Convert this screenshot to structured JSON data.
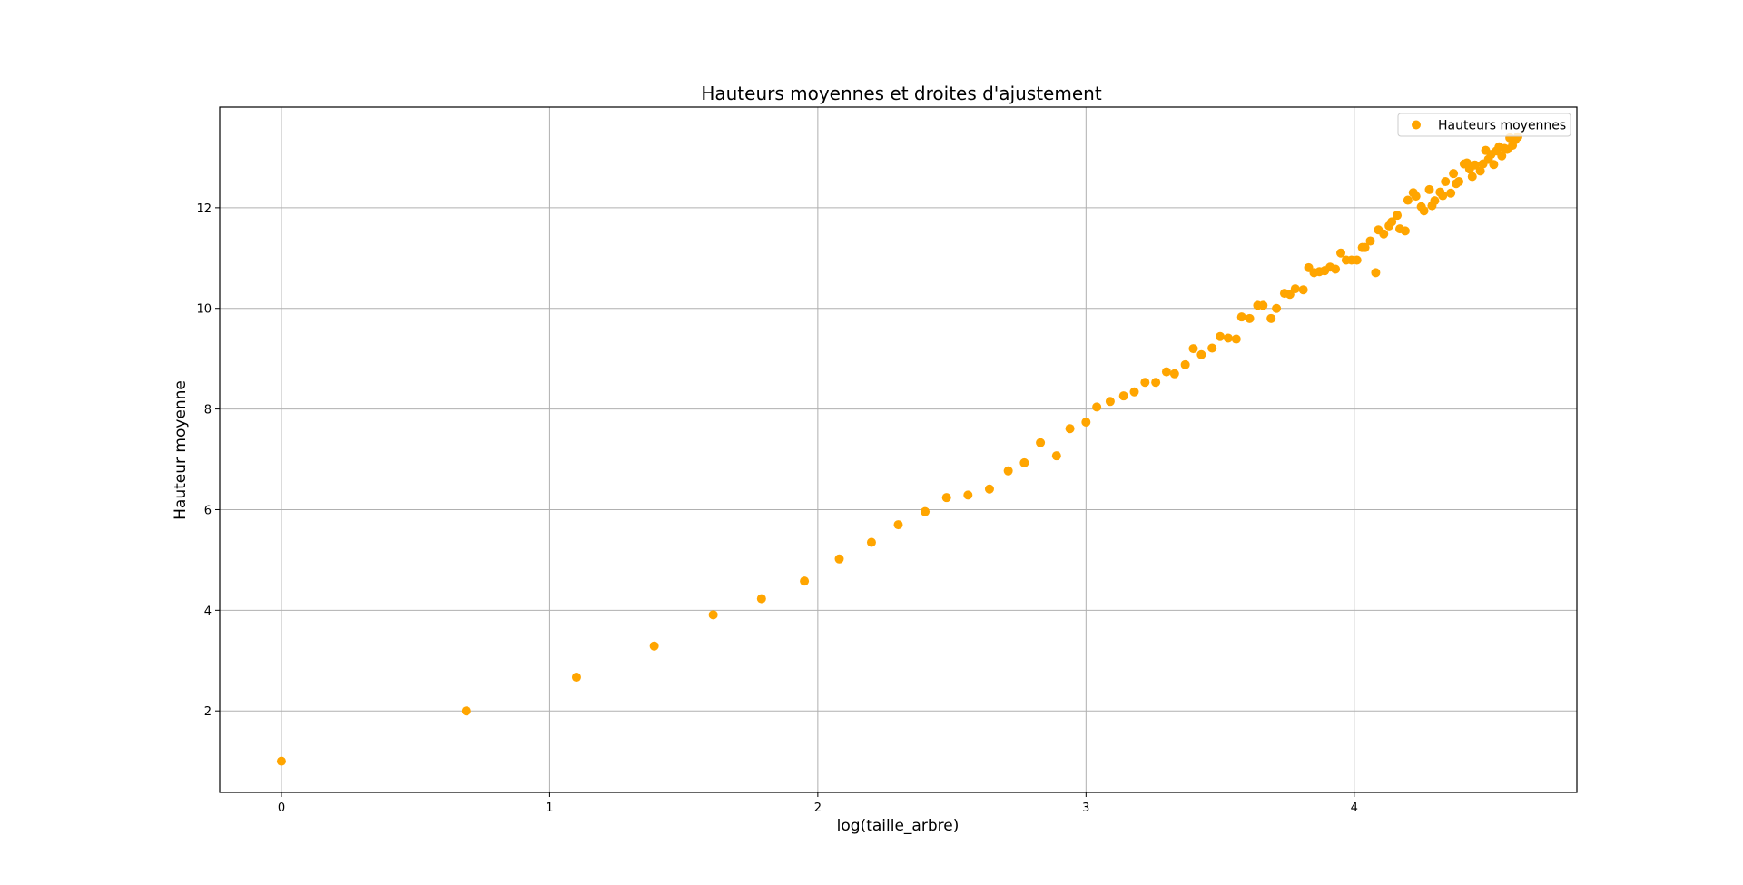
{
  "chart_data": {
    "type": "scatter",
    "title": "Hauteurs moyennes et droites d'ajustement",
    "xlabel": "log(taille_arbre)",
    "ylabel": "Hauteur moyenne",
    "xlim": [
      -0.23,
      4.83
    ],
    "ylim": [
      0.38,
      14.0
    ],
    "xticks": [
      0,
      1,
      2,
      3,
      4
    ],
    "yticks": [
      2,
      4,
      6,
      8,
      10,
      12
    ],
    "grid": true,
    "legend_position": "top-right",
    "colors": {
      "series": "#FFA500",
      "grid": "#b0b0b0",
      "frame": "#000000"
    },
    "series": [
      {
        "name": "Hauteurs moyennes",
        "marker": "circle",
        "points": [
          [
            0.0,
            1.0
          ],
          [
            0.69,
            2.0
          ],
          [
            1.1,
            2.67
          ],
          [
            1.39,
            3.29
          ],
          [
            1.61,
            3.91
          ],
          [
            1.79,
            4.23
          ],
          [
            1.95,
            4.58
          ],
          [
            2.08,
            5.02
          ],
          [
            2.2,
            5.35
          ],
          [
            2.3,
            5.7
          ],
          [
            2.4,
            5.96
          ],
          [
            2.48,
            6.24
          ],
          [
            2.56,
            6.29
          ],
          [
            2.64,
            6.41
          ],
          [
            2.71,
            6.77
          ],
          [
            2.77,
            6.93
          ],
          [
            2.83,
            7.33
          ],
          [
            2.89,
            7.07
          ],
          [
            2.94,
            7.61
          ],
          [
            3.0,
            7.74
          ],
          [
            3.04,
            8.04
          ],
          [
            3.09,
            8.15
          ],
          [
            3.14,
            8.26
          ],
          [
            3.18,
            8.34
          ],
          [
            3.22,
            8.53
          ],
          [
            3.26,
            8.53
          ],
          [
            3.3,
            8.74
          ],
          [
            3.33,
            8.7
          ],
          [
            3.37,
            8.88
          ],
          [
            3.4,
            9.2
          ],
          [
            3.43,
            9.08
          ],
          [
            3.47,
            9.21
          ],
          [
            3.5,
            9.44
          ],
          [
            3.53,
            9.41
          ],
          [
            3.56,
            9.39
          ],
          [
            3.58,
            9.83
          ],
          [
            3.61,
            9.8
          ],
          [
            3.64,
            10.06
          ],
          [
            3.66,
            10.06
          ],
          [
            3.69,
            9.8
          ],
          [
            3.71,
            10.0
          ],
          [
            3.74,
            10.3
          ],
          [
            3.76,
            10.28
          ],
          [
            3.78,
            10.39
          ],
          [
            3.81,
            10.37
          ],
          [
            3.83,
            10.81
          ],
          [
            3.85,
            10.71
          ],
          [
            3.87,
            10.73
          ],
          [
            3.89,
            10.75
          ],
          [
            3.91,
            10.82
          ],
          [
            3.93,
            10.78
          ],
          [
            3.95,
            11.1
          ],
          [
            3.97,
            10.96
          ],
          [
            3.99,
            10.96
          ],
          [
            4.01,
            10.96
          ],
          [
            4.03,
            11.21
          ],
          [
            4.04,
            11.21
          ],
          [
            4.06,
            11.34
          ],
          [
            4.08,
            10.71
          ],
          [
            4.09,
            11.56
          ],
          [
            4.11,
            11.48
          ],
          [
            4.13,
            11.64
          ],
          [
            4.14,
            11.72
          ],
          [
            4.16,
            11.85
          ],
          [
            4.17,
            11.58
          ],
          [
            4.19,
            11.54
          ],
          [
            4.2,
            12.15
          ],
          [
            4.22,
            12.3
          ],
          [
            4.23,
            12.23
          ],
          [
            4.25,
            12.02
          ],
          [
            4.26,
            11.94
          ],
          [
            4.28,
            12.36
          ],
          [
            4.29,
            12.04
          ],
          [
            4.3,
            12.14
          ],
          [
            4.32,
            12.31
          ],
          [
            4.33,
            12.24
          ],
          [
            4.34,
            12.52
          ],
          [
            4.36,
            12.29
          ],
          [
            4.37,
            12.68
          ],
          [
            4.38,
            12.48
          ],
          [
            4.39,
            12.52
          ],
          [
            4.41,
            12.87
          ],
          [
            4.42,
            12.89
          ],
          [
            4.43,
            12.77
          ],
          [
            4.44,
            12.62
          ],
          [
            4.45,
            12.85
          ],
          [
            4.47,
            12.73
          ],
          [
            4.48,
            12.87
          ],
          [
            4.49,
            13.14
          ],
          [
            4.5,
            12.96
          ],
          [
            4.51,
            13.06
          ],
          [
            4.52,
            12.86
          ],
          [
            4.53,
            13.13
          ],
          [
            4.54,
            13.21
          ],
          [
            4.55,
            13.03
          ],
          [
            4.56,
            13.18
          ],
          [
            4.57,
            13.16
          ],
          [
            4.58,
            13.39
          ],
          [
            4.59,
            13.24
          ],
          [
            4.6,
            13.35
          ],
          [
            4.61,
            13.41
          ]
        ]
      }
    ]
  }
}
